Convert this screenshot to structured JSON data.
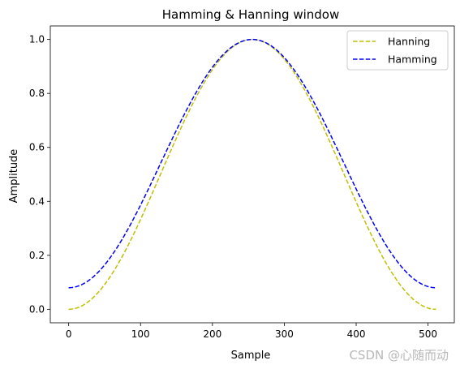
{
  "chart_data": {
    "type": "line",
    "title": "Hamming & Hanning window",
    "xlabel": "Sample",
    "ylabel": "Amplitude",
    "xlim": [
      -25.55,
      536.55
    ],
    "ylim": [
      -0.05,
      1.05
    ],
    "x_ticks": [
      0,
      100,
      200,
      300,
      400,
      500
    ],
    "y_ticks": [
      0.0,
      0.2,
      0.4,
      0.6,
      0.8,
      1.0
    ],
    "x_tick_labels": [
      "0",
      "100",
      "200",
      "300",
      "400",
      "500"
    ],
    "y_tick_labels": [
      "0.0",
      "0.2",
      "0.4",
      "0.6",
      "0.8",
      "1.0"
    ],
    "grid": false,
    "legend_position": "top-right",
    "n_samples": 512,
    "series": [
      {
        "name": "Hanning",
        "color": "#bfbf00",
        "style": "dashed",
        "x": [
          0,
          32,
          64,
          96,
          128,
          160,
          192,
          224,
          256,
          288,
          320,
          352,
          384,
          416,
          448,
          480,
          511
        ],
        "values": [
          0.0,
          0.038,
          0.146,
          0.309,
          0.5,
          0.691,
          0.854,
          0.962,
          1.0,
          0.962,
          0.854,
          0.691,
          0.5,
          0.309,
          0.146,
          0.038,
          0.0
        ]
      },
      {
        "name": "Hamming",
        "color": "#0000ff",
        "style": "dashed",
        "x": [
          0,
          32,
          64,
          96,
          128,
          160,
          192,
          224,
          256,
          288,
          320,
          352,
          384,
          416,
          448,
          480,
          511
        ],
        "values": [
          0.08,
          0.115,
          0.214,
          0.364,
          0.54,
          0.716,
          0.866,
          0.965,
          1.0,
          0.965,
          0.866,
          0.716,
          0.54,
          0.364,
          0.214,
          0.115,
          0.08
        ]
      }
    ]
  },
  "watermark": "CSDN @心随而动"
}
